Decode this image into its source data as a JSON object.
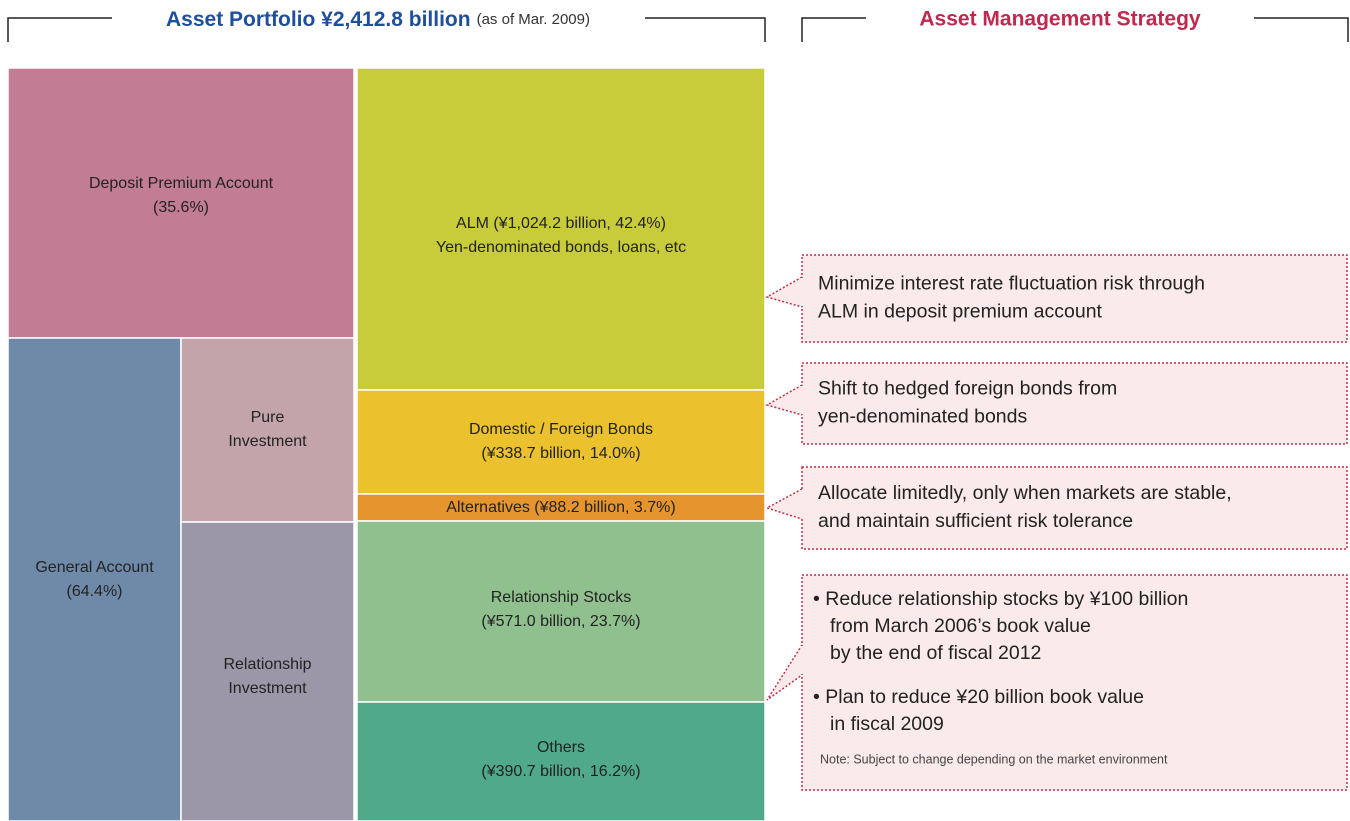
{
  "header": {
    "title": "Asset Portfolio ¥2,412.8 billion",
    "subtitle": "(as of Mar. 2009)",
    "strategy_title": "Asset Management Strategy"
  },
  "blocks": [
    {
      "lines": [
        "Deposit Premium Account",
        "(35.6%)"
      ]
    },
    {
      "lines": [
        "General Account",
        "(64.4%)"
      ]
    },
    {
      "lines": [
        "Pure",
        "Investment"
      ]
    },
    {
      "lines": [
        "Relationship",
        "Investment"
      ]
    },
    {
      "lines": [
        "ALM (¥1,024.2 billion, 42.4%)",
        "Yen-denominated bonds, loans, etc"
      ]
    },
    {
      "lines": [
        "Domestic / Foreign Bonds",
        "(¥338.7 billion, 14.0%)"
      ]
    },
    {
      "lines": [
        "Alternatives (¥88.2 billion, 3.7%)"
      ]
    },
    {
      "lines": [
        "Relationship Stocks",
        "(¥571.0 billion, 23.7%)"
      ]
    },
    {
      "lines": [
        "Others",
        "(¥390.7 billion, 16.2%)"
      ]
    }
  ],
  "callouts": [
    {
      "lines": [
        "Minimize interest rate fluctuation risk through",
        "ALM in deposit premium account"
      ]
    },
    {
      "lines": [
        "Shift to hedged foreign bonds from",
        "yen-denominated bonds"
      ]
    },
    {
      "lines": [
        "Allocate limitedly, only when markets are stable,",
        "and maintain sufficient risk tolerance"
      ]
    },
    {
      "lines": [
        "• Reduce relationship stocks by ¥100 billion",
        "from March 2006’s book value",
        "by the end of fiscal 2012",
        "• Plan to reduce ¥20 billion book value",
        "in fiscal 2009"
      ],
      "note": "Note: Subject to change depending on the market environment"
    }
  ]
}
